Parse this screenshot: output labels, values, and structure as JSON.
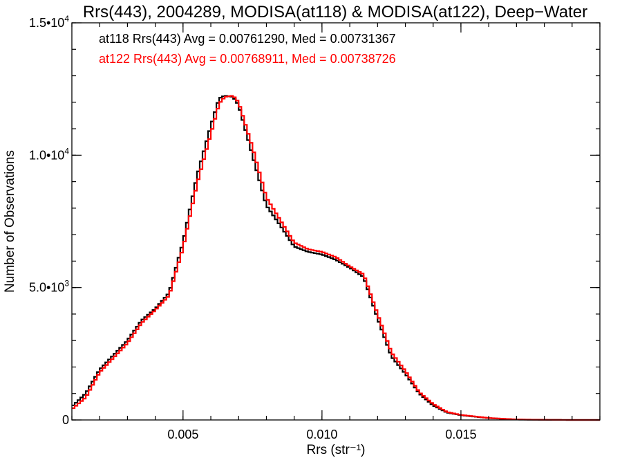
{
  "chart_data": {
    "type": "histogram-step",
    "title": "Rrs(443), 2004289, MODISA(at118) & MODISA(at122), Deep−Water",
    "xlabel": "Rrs (str⁻¹)",
    "ylabel": "Number of Observations",
    "xlim": [
      0.001,
      0.02
    ],
    "ylim": [
      0,
      15000
    ],
    "x_ticks": [
      {
        "value": 0.005,
        "label": "0.005"
      },
      {
        "value": 0.01,
        "label": "0.010"
      },
      {
        "value": 0.015,
        "label": "0.015"
      }
    ],
    "y_ticks": [
      {
        "value": 0,
        "label": "0"
      },
      {
        "value": 5000,
        "label": "5.0•10",
        "exp": "3"
      },
      {
        "value": 10000,
        "label": "1.0•10",
        "exp": "4"
      },
      {
        "value": 15000,
        "label": "1.5•10",
        "exp": "4"
      }
    ],
    "x_minor_step": 0.001,
    "y_minor_step": 1000,
    "bin_width": 0.0001,
    "legend": [
      {
        "text": "at118 Rrs(443) Avg = 0.00761290, Med = 0.00731367",
        "color": "#000000"
      },
      {
        "text": "at122 Rrs(443) Avg = 0.00768911, Med = 0.00738726",
        "color": "#ff0000"
      }
    ],
    "legend_position": "top-left",
    "series": [
      {
        "key": "at118",
        "color": "#000000",
        "x": [
          0.001,
          0.0015,
          0.002,
          0.0025,
          0.003,
          0.0035,
          0.004,
          0.0045,
          0.005,
          0.0055,
          0.006,
          0.0063,
          0.0065,
          0.0068,
          0.007,
          0.0075,
          0.008,
          0.0085,
          0.009,
          0.0095,
          0.01,
          0.0105,
          0.011,
          0.0115,
          0.012,
          0.0125,
          0.013,
          0.0135,
          0.014,
          0.0145,
          0.015,
          0.016,
          0.017,
          0.018,
          0.019,
          0.02
        ],
        "y": [
          500,
          1000,
          1900,
          2450,
          3000,
          3750,
          4200,
          4800,
          6700,
          9200,
          11100,
          12150,
          12250,
          12200,
          11900,
          10000,
          8100,
          7350,
          6550,
          6350,
          6250,
          6050,
          5750,
          5400,
          3850,
          2400,
          1750,
          1000,
          550,
          280,
          180,
          70,
          15,
          5,
          0,
          0
        ]
      },
      {
        "key": "at122",
        "color": "#ff0000",
        "x": [
          0.001,
          0.0015,
          0.002,
          0.0025,
          0.003,
          0.0035,
          0.004,
          0.0045,
          0.005,
          0.0055,
          0.006,
          0.0063,
          0.0065,
          0.0068,
          0.007,
          0.0075,
          0.008,
          0.0085,
          0.009,
          0.0095,
          0.01,
          0.0105,
          0.011,
          0.0115,
          0.012,
          0.0125,
          0.013,
          0.0135,
          0.014,
          0.0145,
          0.015,
          0.016,
          0.017,
          0.018,
          0.019,
          0.02
        ],
        "y": [
          400,
          850,
          1800,
          2350,
          2900,
          3650,
          4150,
          4700,
          6500,
          8900,
          10800,
          11950,
          12200,
          12250,
          12000,
          10300,
          8400,
          7550,
          6700,
          6450,
          6350,
          6150,
          5800,
          5500,
          4000,
          2550,
          1850,
          1050,
          600,
          300,
          190,
          75,
          18,
          6,
          0,
          0
        ]
      }
    ]
  }
}
